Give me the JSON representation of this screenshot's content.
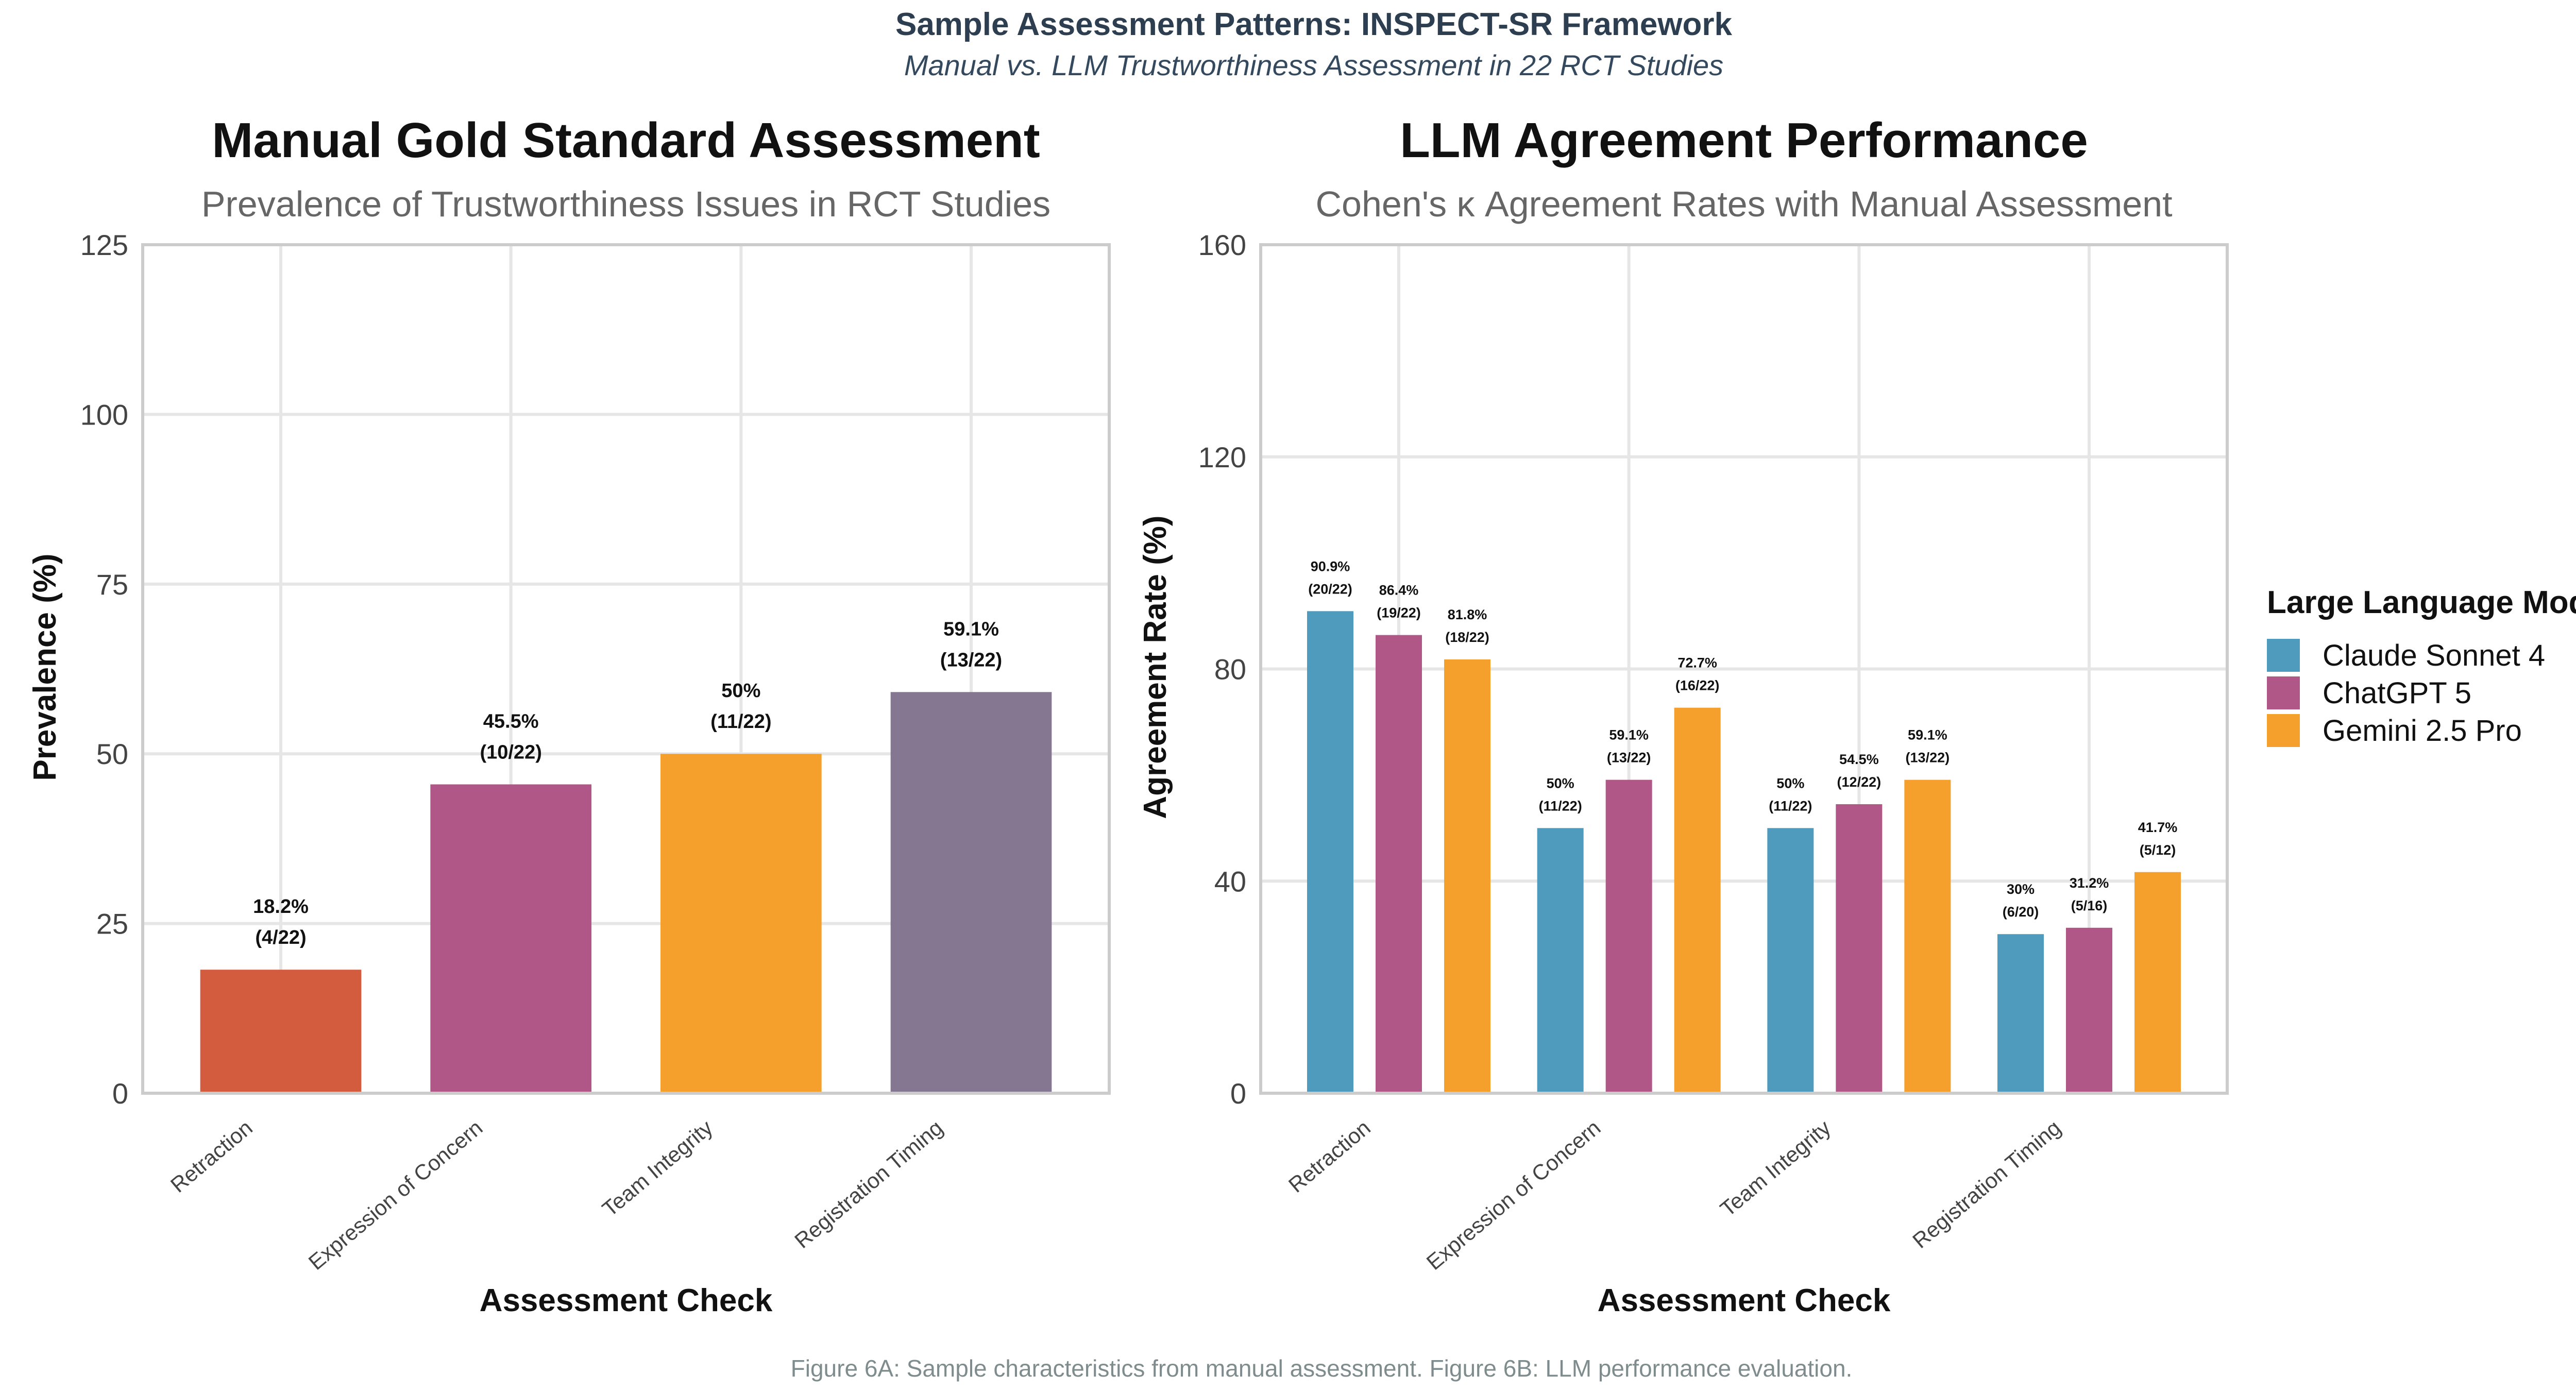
{
  "figure": {
    "title": "Sample Assessment Patterns: INSPECT-SR Framework",
    "subtitle": "Manual vs. LLM Trustworthiness Assessment in 22 RCT Studies",
    "caption": "Figure 6A: Sample characteristics from manual assessment. Figure 6B: LLM performance evaluation."
  },
  "chart_data": [
    {
      "type": "bar",
      "title": "Manual Gold Standard Assessment",
      "subtitle": "Prevalence of Trustworthiness Issues in RCT Studies",
      "xlabel": "Assessment Check",
      "ylabel": "Prevalence (%)",
      "ylim": [
        0,
        125
      ],
      "yticks": [
        0,
        25,
        50,
        75,
        100,
        125
      ],
      "grid": true,
      "categories": [
        "Retraction",
        "Expression of Concern",
        "Team Integrity",
        "Registration Timing"
      ],
      "values": [
        18.2,
        45.5,
        50,
        59.1
      ],
      "colors": [
        "#d35c3f",
        "#b05787",
        "#f5a02d",
        "#857792"
      ],
      "labels": [
        [
          "18.2%",
          "(4/22)"
        ],
        [
          "45.5%",
          "(10/22)"
        ],
        [
          "50%",
          "(11/22)"
        ],
        [
          "59.1%",
          "(13/22)"
        ]
      ]
    },
    {
      "type": "bar",
      "title": "LLM Agreement Performance",
      "subtitle": "Cohen's κ Agreement Rates with Manual Assessment",
      "xlabel": "Assessment Check",
      "ylabel": "Agreement Rate (%)",
      "ylim": [
        0,
        160
      ],
      "yticks": [
        0,
        40,
        80,
        120,
        160
      ],
      "grid": true,
      "legend_title": "Large Language Model",
      "legend_position": "right",
      "categories": [
        "Retraction",
        "Expression of Concern",
        "Team Integrity",
        "Registration Timing"
      ],
      "series": [
        {
          "name": "Claude Sonnet 4",
          "color": "#4f9bbd",
          "values": [
            90.9,
            50,
            50,
            30
          ],
          "labels": [
            [
              "90.9%",
              "(20/22)"
            ],
            [
              "50%",
              "(11/22)"
            ],
            [
              "50%",
              "(11/22)"
            ],
            [
              "30%",
              "(6/20)"
            ]
          ]
        },
        {
          "name": "ChatGPT 5",
          "color": "#b05787",
          "values": [
            86.4,
            59.1,
            54.5,
            31.2
          ],
          "labels": [
            [
              "86.4%",
              "(19/22)"
            ],
            [
              "59.1%",
              "(13/22)"
            ],
            [
              "54.5%",
              "(12/22)"
            ],
            [
              "31.2%",
              "(5/16)"
            ]
          ]
        },
        {
          "name": "Gemini 2.5 Pro",
          "color": "#f5a02d",
          "values": [
            81.8,
            72.7,
            59.1,
            41.7
          ],
          "labels": [
            [
              "81.8%",
              "(18/22)"
            ],
            [
              "72.7%",
              "(16/22)"
            ],
            [
              "59.1%",
              "(13/22)"
            ],
            [
              "41.7%",
              "(5/12)"
            ]
          ]
        }
      ]
    }
  ]
}
